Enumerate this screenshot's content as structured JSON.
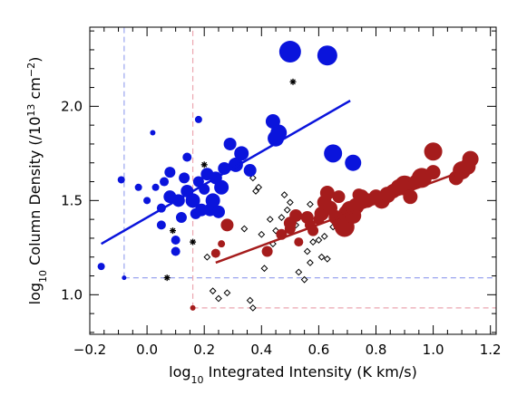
{
  "chart_data": {
    "type": "scatter",
    "title": "",
    "xlabel": "log10 Integrated Intensity (K km/s)",
    "ylabel": "log10 Column Density (/10^13 cm^-2)",
    "xlabel_parts": {
      "log": "log",
      "sub": "10",
      "rest": " Integrated Intensity (K km/s)"
    },
    "ylabel_parts": {
      "log": "log",
      "sub": "10",
      "mid": " Column Density (/10",
      "sup1": "13",
      "cm": " cm",
      "sup2": "−2",
      "end": ")"
    },
    "xlim": [
      -0.2,
      1.22
    ],
    "ylim": [
      0.79,
      2.42
    ],
    "x_ticks": [
      -0.2,
      0.0,
      0.2,
      0.4,
      0.6,
      0.8,
      1.0,
      1.2
    ],
    "x_tick_labels": [
      "−0.2",
      "0.0",
      "0.2",
      "0.4",
      "0.6",
      "0.8",
      "1.0",
      "1.2"
    ],
    "y_ticks": [
      1.0,
      1.5,
      2.0
    ],
    "y_tick_labels": [
      "1.0",
      "1.5",
      "2.0"
    ],
    "colors": {
      "blue": "#0a14dc",
      "red": "#a51c1c",
      "dash_blue": "#9aa4ef",
      "dash_red": "#eca6b0"
    },
    "series": [
      {
        "color": "#0a14dc",
        "marker": "circle",
        "points": [
          [
            -0.16,
            1.15,
            4
          ],
          [
            -0.08,
            1.09,
            2.5
          ],
          [
            -0.09,
            1.61,
            4
          ],
          [
            -0.03,
            1.57,
            4
          ],
          [
            0.0,
            1.5,
            4
          ],
          [
            0.02,
            1.86,
            3
          ],
          [
            0.03,
            1.57,
            4
          ],
          [
            0.05,
            1.46,
            5
          ],
          [
            0.05,
            1.37,
            5
          ],
          [
            0.06,
            1.6,
            5
          ],
          [
            0.08,
            1.65,
            6
          ],
          [
            0.08,
            1.52,
            7
          ],
          [
            0.1,
            1.29,
            5
          ],
          [
            0.1,
            1.23,
            5
          ],
          [
            0.11,
            1.5,
            7
          ],
          [
            0.12,
            1.41,
            6
          ],
          [
            0.13,
            1.62,
            6
          ],
          [
            0.14,
            1.55,
            7
          ],
          [
            0.14,
            1.73,
            5
          ],
          [
            0.16,
            1.5,
            8
          ],
          [
            0.17,
            1.43,
            6
          ],
          [
            0.18,
            1.93,
            4
          ],
          [
            0.18,
            1.6,
            6
          ],
          [
            0.19,
            1.45,
            7
          ],
          [
            0.2,
            1.56,
            6
          ],
          [
            0.21,
            1.64,
            7
          ],
          [
            0.22,
            1.45,
            7
          ],
          [
            0.23,
            1.5,
            8
          ],
          [
            0.24,
            1.62,
            7
          ],
          [
            0.25,
            1.44,
            7
          ],
          [
            0.26,
            1.57,
            8
          ],
          [
            0.27,
            1.67,
            7
          ],
          [
            0.29,
            1.8,
            7
          ],
          [
            0.31,
            1.69,
            8
          ],
          [
            0.33,
            1.75,
            8
          ],
          [
            0.36,
            1.66,
            7
          ],
          [
            0.44,
            1.92,
            8
          ],
          [
            0.45,
            1.83,
            9
          ],
          [
            0.46,
            1.86,
            9
          ],
          [
            0.5,
            2.29,
            12
          ],
          [
            0.63,
            2.27,
            11
          ],
          [
            0.65,
            1.75,
            10
          ],
          [
            0.72,
            1.7,
            9
          ]
        ]
      },
      {
        "color": "#a51c1c",
        "marker": "circle",
        "points": [
          [
            0.16,
            0.93,
            3
          ],
          [
            0.24,
            1.22,
            5
          ],
          [
            0.26,
            1.27,
            4
          ],
          [
            0.28,
            1.37,
            7
          ],
          [
            0.42,
            1.23,
            6
          ],
          [
            0.47,
            1.32,
            6
          ],
          [
            0.5,
            1.35,
            6
          ],
          [
            0.5,
            1.38,
            7
          ],
          [
            0.52,
            1.42,
            7
          ],
          [
            0.53,
            1.28,
            5
          ],
          [
            0.56,
            1.41,
            7
          ],
          [
            0.57,
            1.37,
            6
          ],
          [
            0.58,
            1.34,
            6
          ],
          [
            0.6,
            1.4,
            6
          ],
          [
            0.61,
            1.43,
            8
          ],
          [
            0.62,
            1.49,
            8
          ],
          [
            0.63,
            1.54,
            8
          ],
          [
            0.64,
            1.46,
            8
          ],
          [
            0.66,
            1.41,
            8
          ],
          [
            0.67,
            1.52,
            7
          ],
          [
            0.68,
            1.38,
            10
          ],
          [
            0.69,
            1.36,
            11
          ],
          [
            0.7,
            1.43,
            10
          ],
          [
            0.71,
            1.45,
            10
          ],
          [
            0.72,
            1.42,
            9
          ],
          [
            0.73,
            1.47,
            9
          ],
          [
            0.74,
            1.53,
            7
          ],
          [
            0.75,
            1.52,
            8
          ],
          [
            0.77,
            1.5,
            8
          ],
          [
            0.8,
            1.52,
            8
          ],
          [
            0.82,
            1.5,
            9
          ],
          [
            0.84,
            1.53,
            9
          ],
          [
            0.86,
            1.55,
            8
          ],
          [
            0.88,
            1.57,
            9
          ],
          [
            0.9,
            1.58,
            11
          ],
          [
            0.92,
            1.52,
            8
          ],
          [
            0.94,
            1.6,
            8
          ],
          [
            0.96,
            1.62,
            11
          ],
          [
            1.0,
            1.65,
            8
          ],
          [
            1.0,
            1.76,
            10
          ],
          [
            1.08,
            1.62,
            8
          ],
          [
            1.1,
            1.66,
            10
          ],
          [
            1.12,
            1.68,
            9
          ],
          [
            1.13,
            1.72,
            9
          ]
        ]
      },
      {
        "color": "#000000",
        "marker": "diamond",
        "points": [
          [
            0.21,
            1.2
          ],
          [
            0.23,
            1.02
          ],
          [
            0.25,
            0.98
          ],
          [
            0.28,
            1.01
          ],
          [
            0.34,
            1.35
          ],
          [
            0.36,
            0.97
          ],
          [
            0.37,
            0.93
          ],
          [
            0.37,
            1.62
          ],
          [
            0.38,
            1.55
          ],
          [
            0.39,
            1.57
          ],
          [
            0.4,
            1.32
          ],
          [
            0.41,
            1.14
          ],
          [
            0.43,
            1.4
          ],
          [
            0.44,
            1.27
          ],
          [
            0.45,
            1.34
          ],
          [
            0.47,
            1.41
          ],
          [
            0.48,
            1.53
          ],
          [
            0.49,
            1.45
          ],
          [
            0.5,
            1.49
          ],
          [
            0.52,
            1.37
          ],
          [
            0.53,
            1.12
          ],
          [
            0.55,
            1.08
          ],
          [
            0.56,
            1.23
          ],
          [
            0.57,
            1.17
          ],
          [
            0.57,
            1.48
          ],
          [
            0.58,
            1.28
          ],
          [
            0.6,
            1.29
          ],
          [
            0.61,
            1.2
          ],
          [
            0.62,
            1.31
          ],
          [
            0.63,
            1.19
          ],
          [
            0.65,
            1.36
          ],
          [
            0.66,
            1.42
          ],
          [
            0.68,
            1.43
          ],
          [
            0.7,
            1.45
          ],
          [
            0.72,
            1.4
          ],
          [
            0.74,
            1.46
          ]
        ]
      },
      {
        "color": "#000000",
        "marker": "asterisk",
        "points": [
          [
            0.07,
            1.09
          ],
          [
            0.09,
            1.34
          ],
          [
            0.16,
            1.28
          ],
          [
            0.2,
            1.69
          ],
          [
            0.51,
            2.13
          ]
        ]
      }
    ],
    "fit_lines": [
      {
        "color": "#0a14dc",
        "x": [
          -0.16,
          0.71
        ],
        "y": [
          1.27,
          2.03
        ]
      },
      {
        "color": "#a51c1c",
        "x": [
          0.24,
          1.11
        ],
        "y": [
          1.17,
          1.66
        ]
      }
    ],
    "dashed_lines": [
      {
        "color": "#9aa4ef",
        "orientation": "vertical",
        "x": -0.08,
        "y": [
          1.09,
          2.42
        ]
      },
      {
        "color": "#9aa4ef",
        "orientation": "horizontal",
        "y": 1.09,
        "x": [
          -0.08,
          1.22
        ]
      },
      {
        "color": "#eca6b0",
        "orientation": "vertical",
        "x": 0.16,
        "y": [
          0.93,
          2.42
        ]
      },
      {
        "color": "#eca6b0",
        "orientation": "horizontal",
        "y": 0.93,
        "x": [
          0.16,
          1.22
        ]
      }
    ]
  }
}
